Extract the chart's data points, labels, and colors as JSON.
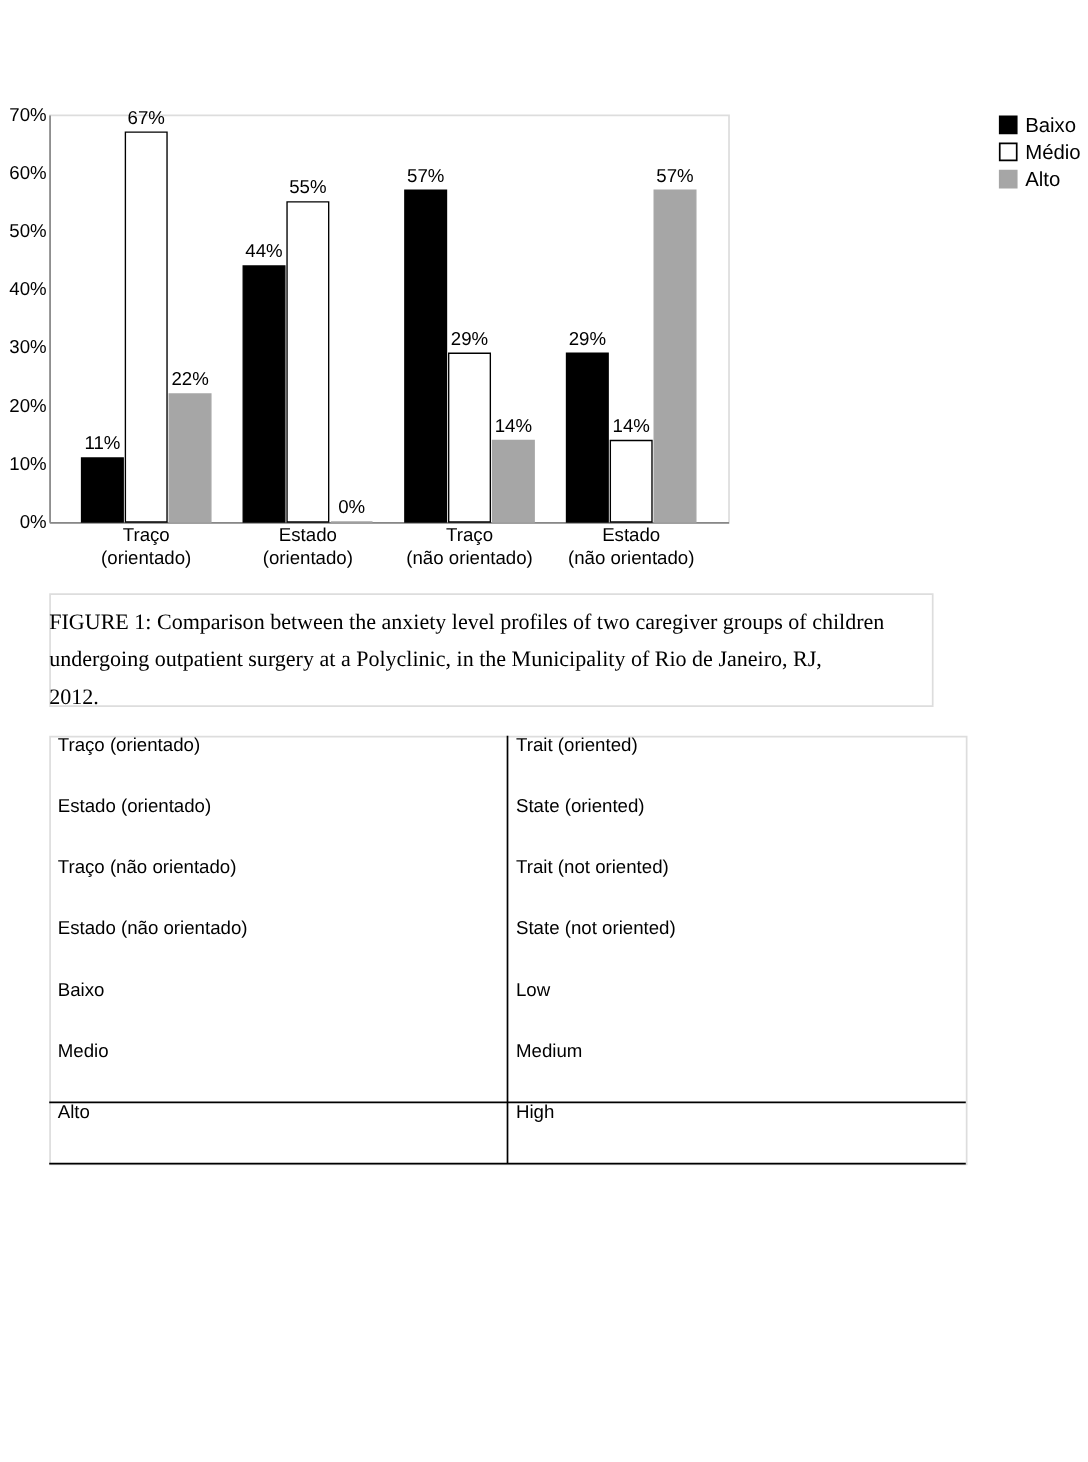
{
  "chart_data": {
    "type": "bar",
    "categories": [
      "Traço (orientado)",
      "Estado (orientado)",
      "Traço (não orientado)",
      "Estado (não orientado)"
    ],
    "series": [
      {
        "name": "Baixo",
        "color": "#000000",
        "values": [
          11,
          44,
          57,
          29
        ],
        "value_labels": [
          "11%",
          "44%",
          "57%",
          "29%"
        ]
      },
      {
        "name": "Médio",
        "color": "#ffffff",
        "values": [
          67,
          55,
          29,
          14
        ],
        "value_labels": [
          "67%",
          "55%",
          "29%",
          "14%"
        ]
      },
      {
        "name": "Alto",
        "color": "#a6a6a6",
        "values": [
          22,
          0,
          14,
          57
        ],
        "value_labels": [
          "22%",
          "0%",
          "14%",
          "57%"
        ]
      }
    ],
    "ylim": [
      0,
      70
    ],
    "yticks": [
      {
        "value": 0,
        "label": "0%"
      },
      {
        "value": 10,
        "label": "10%"
      },
      {
        "value": 20,
        "label": "20%"
      },
      {
        "value": 30,
        "label": "30%"
      },
      {
        "value": 40,
        "label": "40%"
      },
      {
        "value": 50,
        "label": "50%"
      },
      {
        "value": 60,
        "label": "60%"
      },
      {
        "value": 70,
        "label": "70%"
      }
    ],
    "grid": false,
    "legend": "right",
    "annotations": [
      "FIGURE 1: Comparison between the anxiety level profiles of two caregiver groups of children undergoing outpatient surgery at a Polyclinic, in the Municipality of Rio de Janeiro, RJ, 2012.",
      "Traço (orientado)",
      "Trait (oriented)",
      "Estado (orientado)",
      "State (oriented)",
      "Traço (não orientado)",
      "Trait (not oriented)",
      "Estado (não orientado)",
      "State (not oriented)",
      "Baixo",
      "Low",
      "Medio",
      "Medium",
      "Alto",
      "High"
    ]
  }
}
